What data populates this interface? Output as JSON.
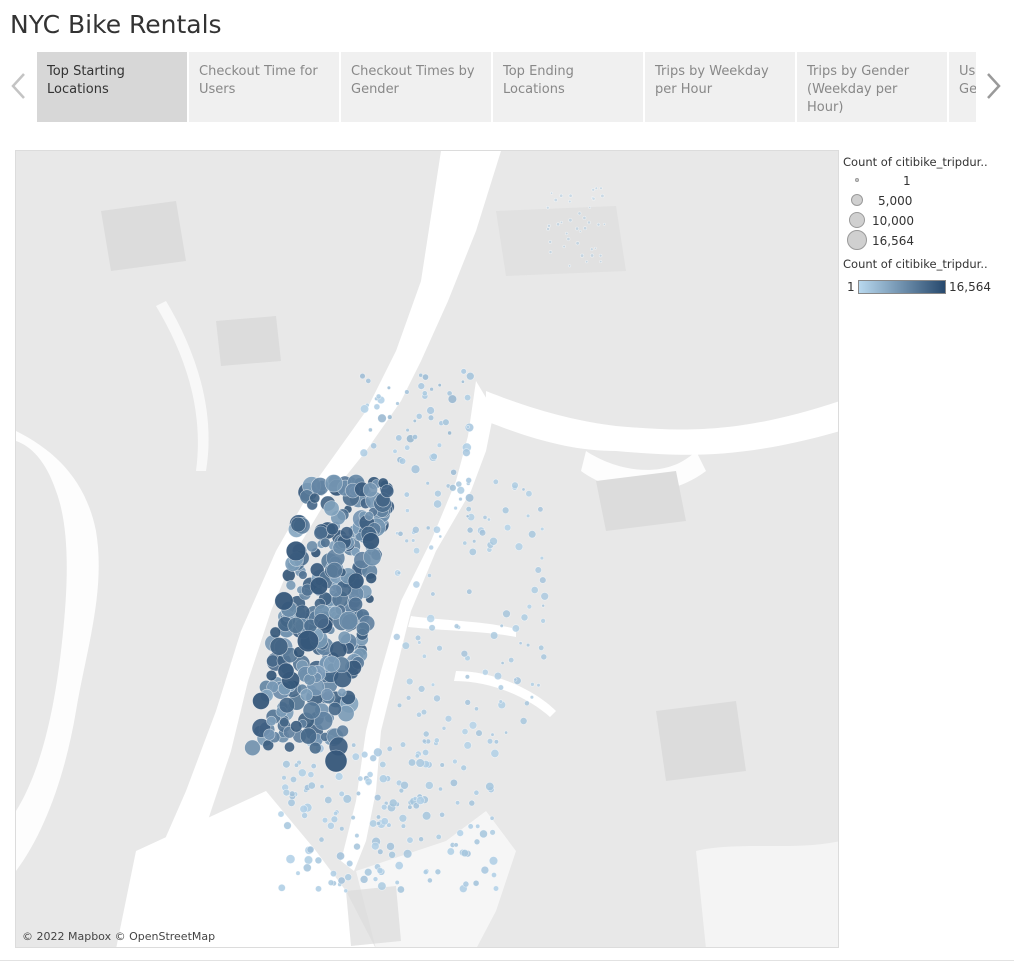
{
  "header": {
    "title": "NYC Bike Rentals"
  },
  "tabs": [
    {
      "label": "Top Starting Locations",
      "active": true
    },
    {
      "label": "Checkout Time for Users",
      "active": false
    },
    {
      "label": "Checkout Times by Gender",
      "active": false
    },
    {
      "label": "Top Ending Locations",
      "active": false
    },
    {
      "label": "Trips by Weekday per Hour",
      "active": false
    },
    {
      "label": "Trips by Gender (Weekday per Hour)",
      "active": false
    },
    {
      "label": "User Trips by Gender",
      "active": false
    }
  ],
  "nav": {
    "prev_icon": "chevron-left-icon",
    "next_icon": "chevron-right-icon"
  },
  "map": {
    "attribution": "© 2022 Mapbox © OpenStreetMap"
  },
  "legend": {
    "size_title": "Count of citibike_tripdur..",
    "size_items": [
      {
        "label": "1",
        "value": 1
      },
      {
        "label": "5,000",
        "value": 5000
      },
      {
        "label": "10,000",
        "value": 10000
      },
      {
        "label": "16,564",
        "value": 16564
      }
    ],
    "color_title": "Count of citibike_tripdur..",
    "color_min": "1",
    "color_max": "16,564",
    "color_low": "#b8d8ee",
    "color_high": "#27496d"
  },
  "colors": {
    "land": "#e8e8e8",
    "water": "#ffffff",
    "park": "#dedede",
    "active_tab": "#d7d7d7",
    "tab": "#f0f0f0"
  }
}
